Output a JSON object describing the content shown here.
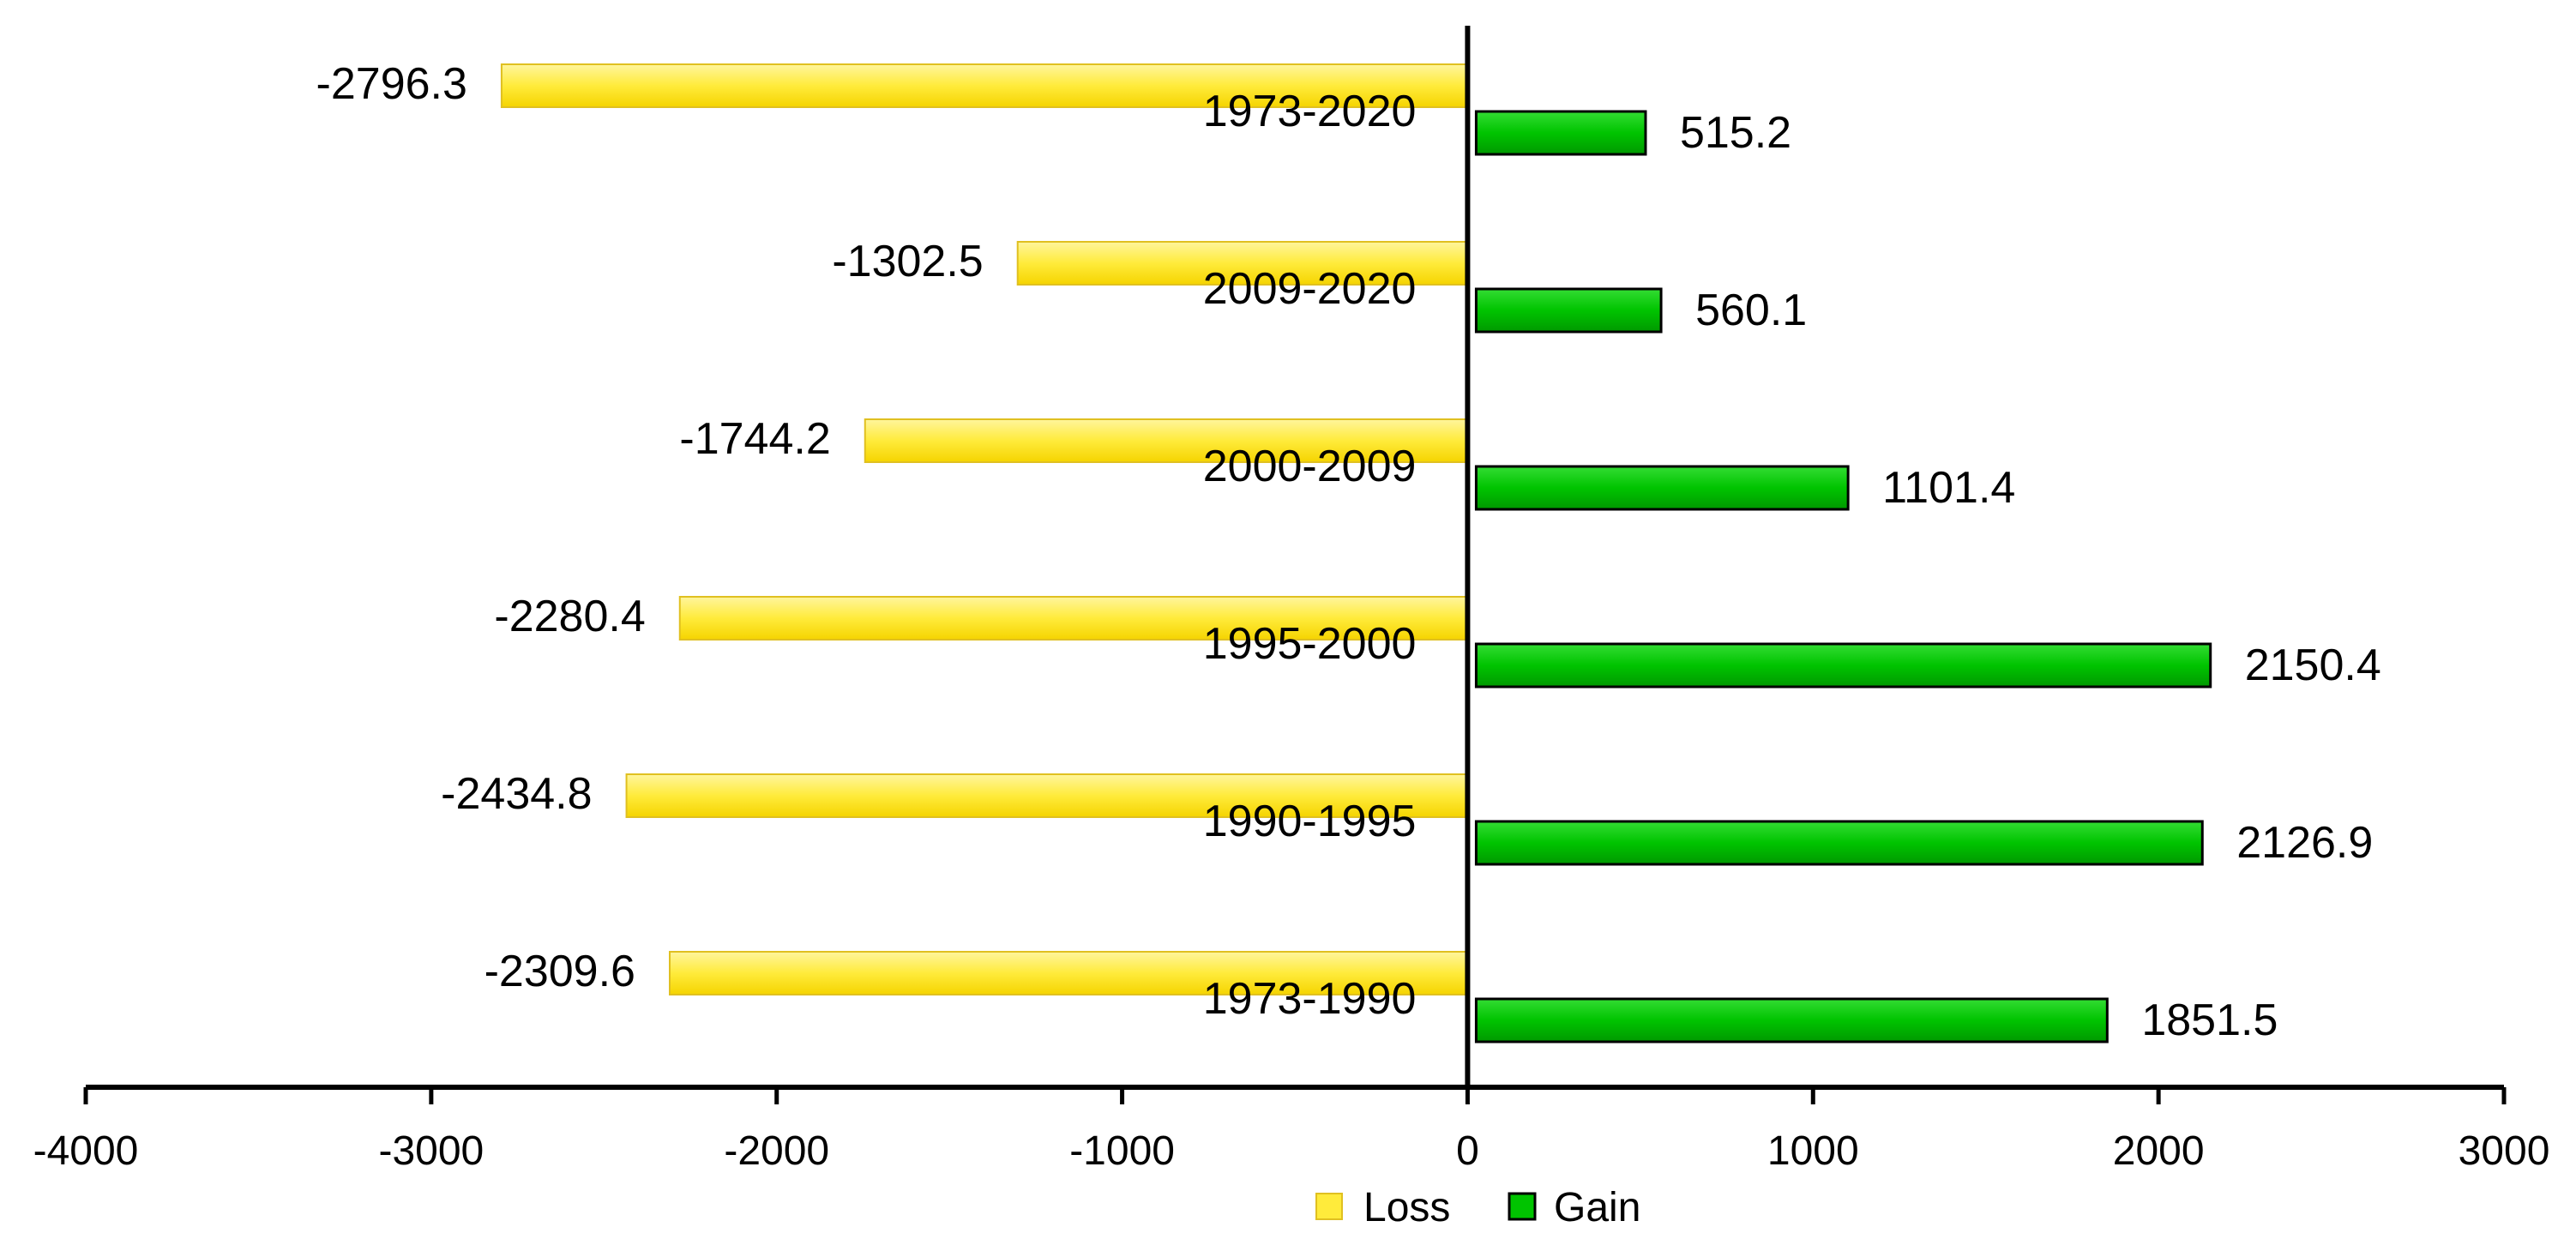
{
  "chart_data": {
    "type": "bar",
    "orientation": "horizontal",
    "categories": [
      "1973-2020",
      "2009-2020",
      "2000-2009",
      "1995-2000",
      "1990-1995",
      "1973-1990"
    ],
    "series": [
      {
        "name": "Loss",
        "values": [
          -2796.3,
          -1302.5,
          -1744.2,
          -2280.4,
          -2434.8,
          -2309.6
        ],
        "color": "#FFEB3B",
        "border": "#E0C020"
      },
      {
        "name": "Gain",
        "values": [
          515.2,
          560.1,
          1101.4,
          2150.4,
          2126.9,
          1851.5
        ],
        "color": "#00C400",
        "border": "#000000"
      }
    ],
    "value_labels": {
      "Loss": [
        "-2796.3",
        "-1302.5",
        "-1744.2",
        "-2280.4",
        "-2434.8",
        "-2309.6"
      ],
      "Gain": [
        "515.2",
        "560.1",
        "1101.4",
        "2150.4",
        "2126.9",
        "1851.5"
      ]
    },
    "xlim": [
      -4000,
      3000
    ],
    "xticks": [
      -4000,
      -3000,
      -2000,
      -1000,
      0,
      1000,
      2000,
      3000
    ],
    "xtick_labels": [
      "-4000",
      "-3000",
      "-2000",
      "-1000",
      "0",
      "1000",
      "2000",
      "3000"
    ],
    "grid": false,
    "legend": {
      "placement": "bottom-center",
      "entries": [
        "Loss",
        "Gain"
      ]
    },
    "title": "",
    "xlabel": "",
    "ylabel": ""
  }
}
